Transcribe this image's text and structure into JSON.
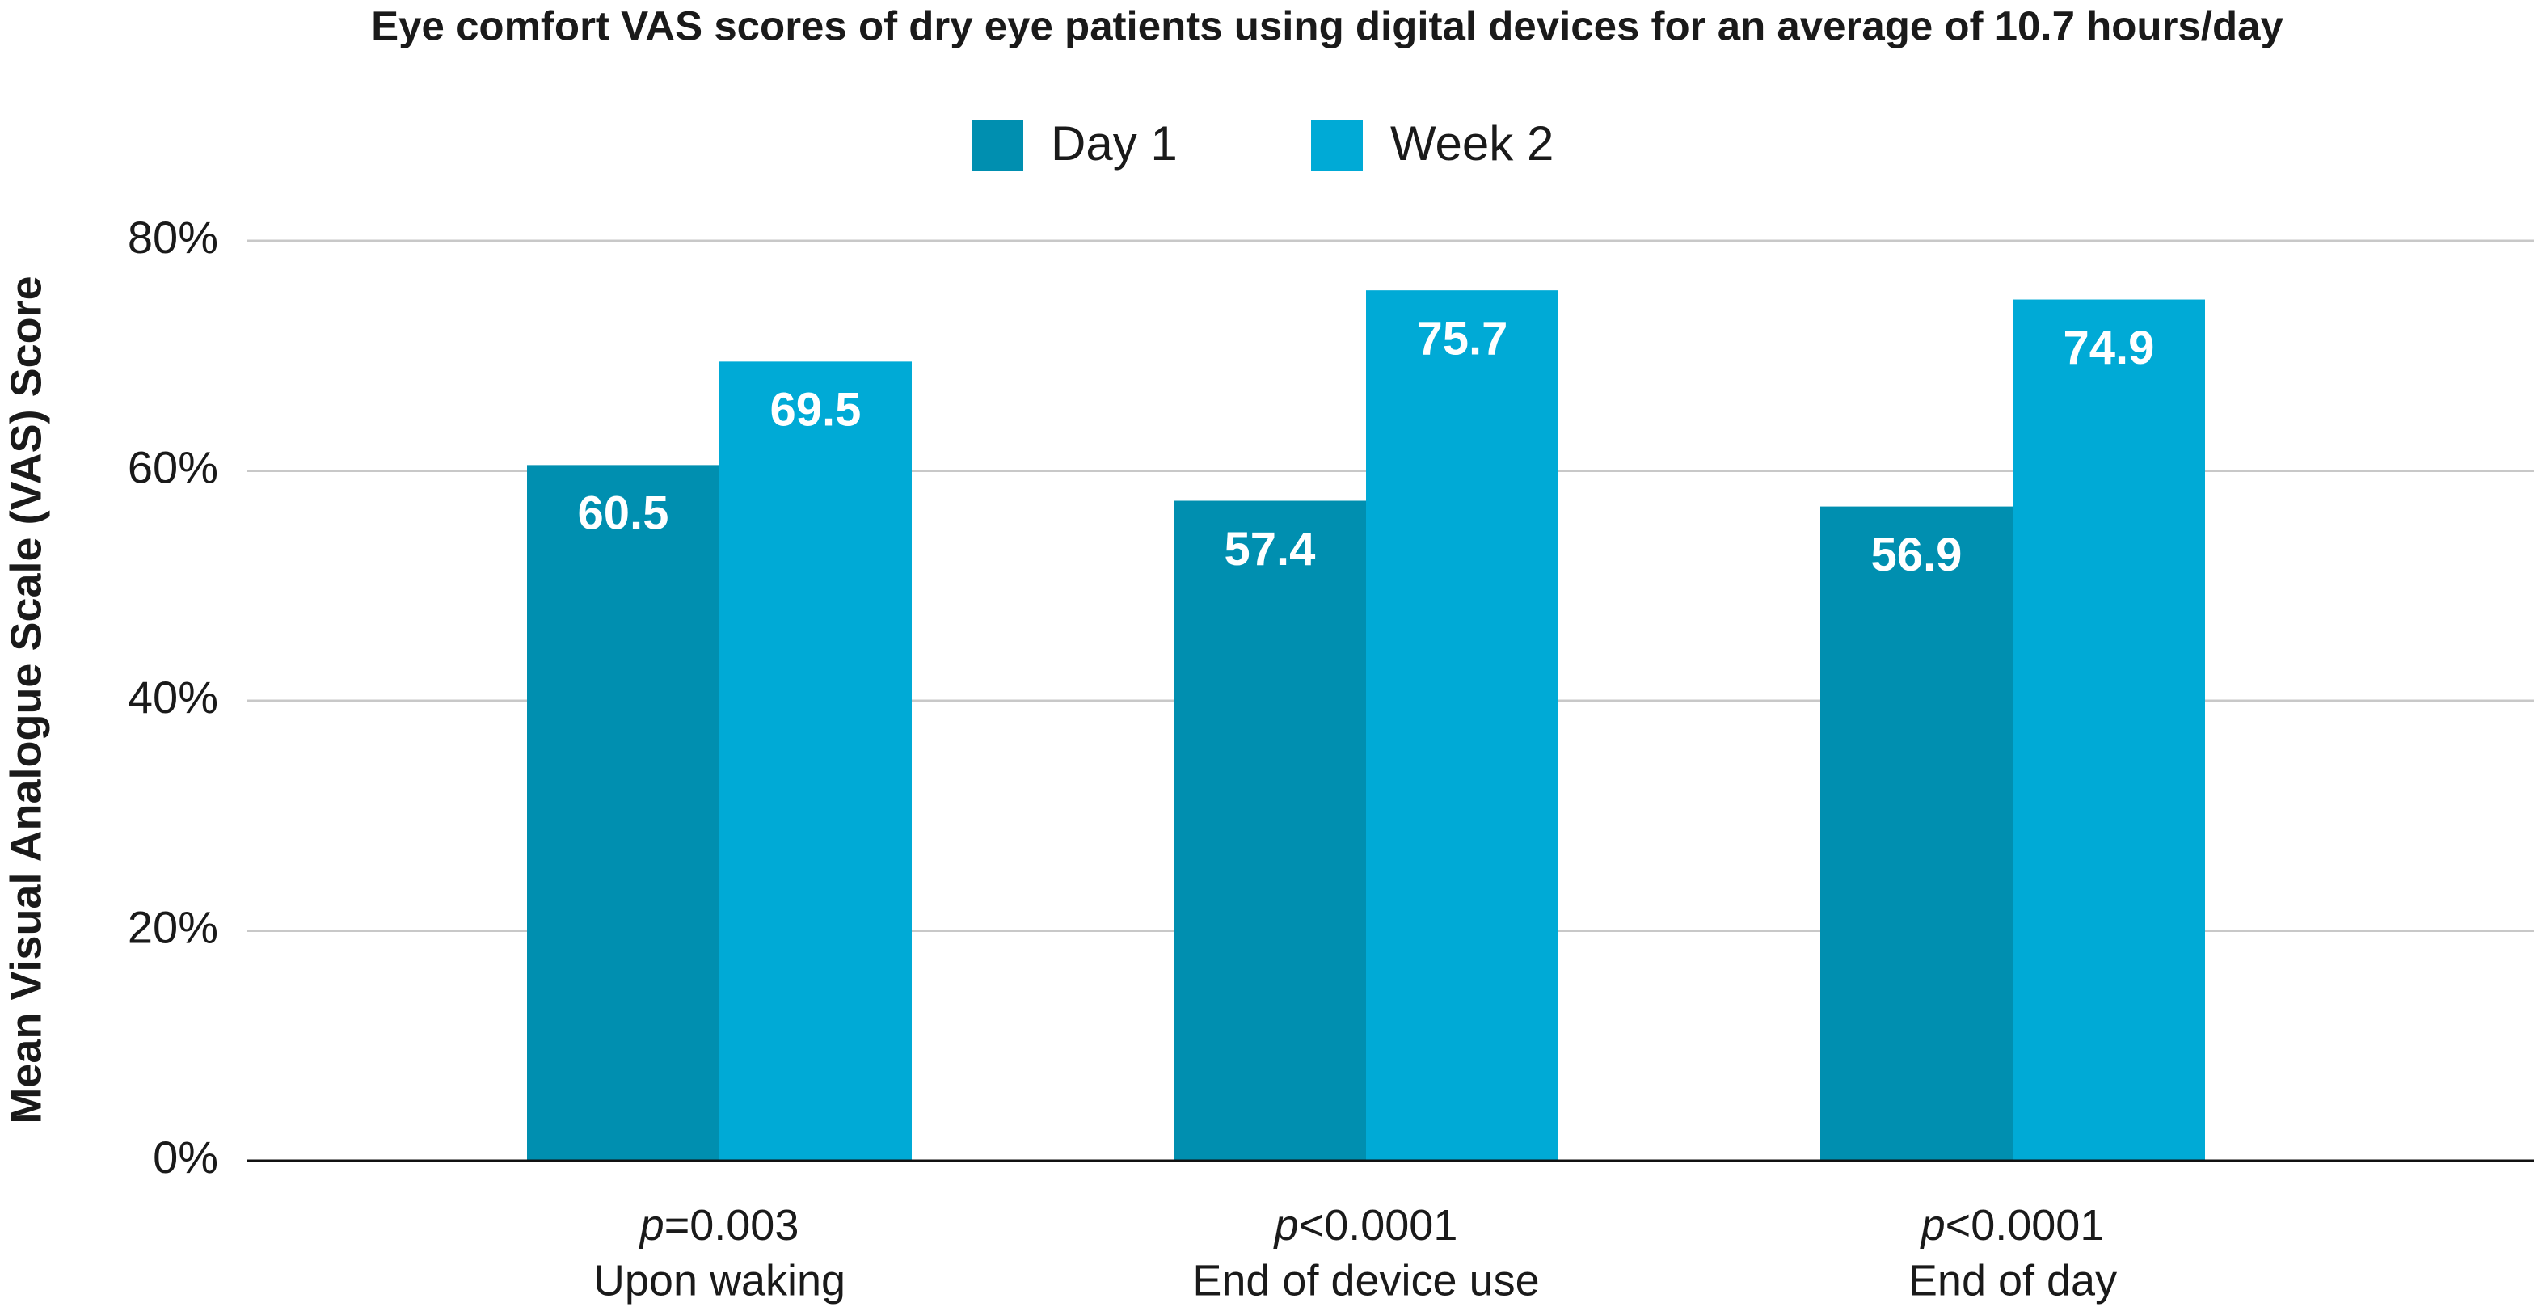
{
  "chart_data": {
    "type": "bar",
    "title": "Eye comfort VAS scores of dry eye patients using digital devices for an average of 10.7 hours/day",
    "y_label": "Mean Visual Analogue Scale (VAS) Score",
    "categories": [
      "Upon waking",
      "End of device use",
      "End of day"
    ],
    "p_values": [
      "p=0.003",
      "p<0.0001",
      "p<0.0001"
    ],
    "series": [
      {
        "name": "Day 1",
        "color": "#008fb0",
        "values": [
          60.5,
          57.4,
          56.9
        ]
      },
      {
        "name": "Week 2",
        "color": "#00aad6",
        "values": [
          69.5,
          75.7,
          74.9
        ]
      }
    ],
    "ylim": [
      0,
      80
    ],
    "yticks": [
      {
        "value": 0,
        "label": "0%"
      },
      {
        "value": 20,
        "label": "20%"
      },
      {
        "value": 40,
        "label": "40%"
      },
      {
        "value": 60,
        "label": "60%"
      },
      {
        "value": 80,
        "label": "80%"
      }
    ],
    "grid": true,
    "legend": "top"
  }
}
